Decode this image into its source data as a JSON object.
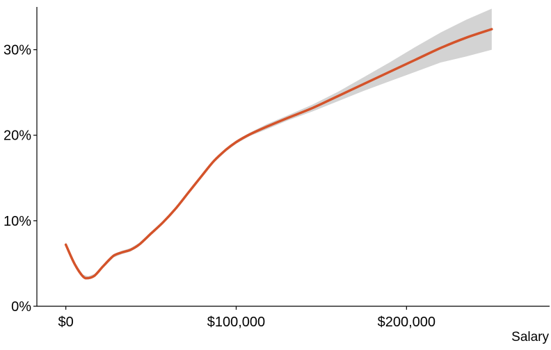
{
  "chart_data": {
    "type": "line",
    "title": "",
    "xlabel": "Salary",
    "ylabel": "",
    "xlim": [
      -17000,
      284000
    ],
    "ylim": [
      0,
      0.35
    ],
    "x_ticks": [
      {
        "value": 0,
        "label": "$0"
      },
      {
        "value": 100000,
        "label": "$100,000"
      },
      {
        "value": 200000,
        "label": "$200,000"
      }
    ],
    "y_ticks": [
      {
        "value": 0,
        "label": "0%"
      },
      {
        "value": 0.1,
        "label": "10%"
      },
      {
        "value": 0.2,
        "label": "20%"
      },
      {
        "value": 0.3,
        "label": "30%"
      }
    ],
    "grid": false,
    "legend": "none",
    "colors": {
      "line": "#d4532a",
      "band": "#d3d3d3",
      "axis": "#000000"
    },
    "series": [
      {
        "points": [
          [
            0,
            0.072,
            0.07,
            0.075
          ],
          [
            5000,
            0.05,
            0.048,
            0.052
          ],
          [
            10000,
            0.035,
            0.033,
            0.037
          ],
          [
            13000,
            0.033,
            0.031,
            0.035
          ],
          [
            17000,
            0.036,
            0.034,
            0.038
          ],
          [
            22000,
            0.047,
            0.045,
            0.049
          ],
          [
            28000,
            0.059,
            0.057,
            0.061
          ],
          [
            33000,
            0.063,
            0.061,
            0.065
          ],
          [
            38000,
            0.066,
            0.064,
            0.068
          ],
          [
            43000,
            0.072,
            0.07,
            0.074
          ],
          [
            50000,
            0.085,
            0.083,
            0.087
          ],
          [
            57000,
            0.098,
            0.096,
            0.1
          ],
          [
            64000,
            0.113,
            0.111,
            0.115
          ],
          [
            72000,
            0.133,
            0.131,
            0.135
          ],
          [
            80000,
            0.153,
            0.151,
            0.155
          ],
          [
            87000,
            0.17,
            0.168,
            0.172
          ],
          [
            94000,
            0.183,
            0.181,
            0.185
          ],
          [
            100000,
            0.192,
            0.19,
            0.194
          ],
          [
            108000,
            0.201,
            0.199,
            0.203
          ],
          [
            118000,
            0.21,
            0.207,
            0.213
          ],
          [
            130000,
            0.22,
            0.217,
            0.223
          ],
          [
            145000,
            0.232,
            0.228,
            0.236
          ],
          [
            160000,
            0.246,
            0.24,
            0.251
          ],
          [
            175000,
            0.26,
            0.252,
            0.268
          ],
          [
            190000,
            0.274,
            0.263,
            0.285
          ],
          [
            205000,
            0.288,
            0.274,
            0.303
          ],
          [
            220000,
            0.302,
            0.285,
            0.32
          ],
          [
            235000,
            0.314,
            0.292,
            0.335
          ],
          [
            250000,
            0.324,
            0.3,
            0.348
          ]
        ]
      }
    ]
  }
}
